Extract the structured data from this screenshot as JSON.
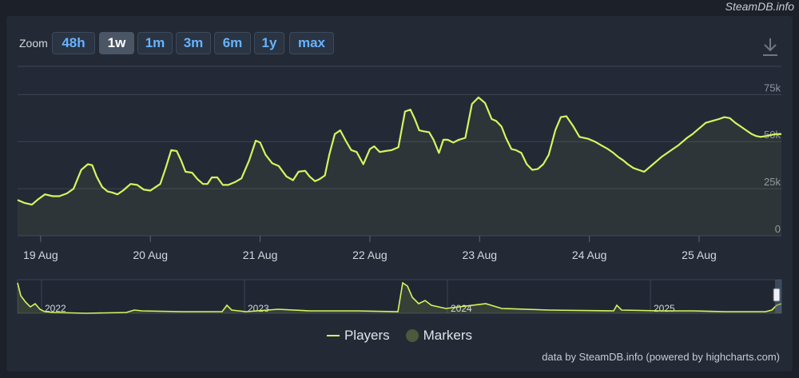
{
  "brand": "SteamDB.info",
  "zoom": {
    "label": "Zoom",
    "buttons": [
      "48h",
      "1w",
      "1m",
      "3m",
      "6m",
      "1y",
      "max"
    ],
    "active": "1w"
  },
  "download_icon": "download-icon",
  "legend": {
    "players": "Players",
    "markers": "Markers"
  },
  "credit": "data by SteamDB.info (powered by highcharts.com)",
  "colors": {
    "series": "#d8f35f",
    "background": "#232a36",
    "active_button": "#4a5566"
  },
  "chart_data": {
    "type": "line",
    "x_unit": "day (Aug)",
    "ylim": [
      0,
      90000
    ],
    "y_ticks": [
      0,
      25000,
      50000,
      75000
    ],
    "y_tick_labels": [
      "0",
      "25k",
      "50k",
      "75k"
    ],
    "x_ticks": [
      19,
      20,
      21,
      22,
      23,
      24,
      25
    ],
    "x_tick_labels": [
      "19 Aug",
      "20 Aug",
      "21 Aug",
      "22 Aug",
      "23 Aug",
      "24 Aug",
      "25 Aug"
    ],
    "xlim": [
      18.79,
      25.75
    ],
    "grid": true,
    "series": [
      {
        "name": "Players",
        "x": [
          18.79,
          18.85,
          18.92,
          18.98,
          19.04,
          19.11,
          19.17,
          19.24,
          19.3,
          19.37,
          19.43,
          19.47,
          19.51,
          19.56,
          19.61,
          19.65,
          19.7,
          19.75,
          19.82,
          19.88,
          19.94,
          20.0,
          20.05,
          20.09,
          20.14,
          20.19,
          20.24,
          20.28,
          20.32,
          20.38,
          20.43,
          20.48,
          20.52,
          20.56,
          20.61,
          20.66,
          20.71,
          20.77,
          20.83,
          20.9,
          20.96,
          21.0,
          21.05,
          21.11,
          21.17,
          21.24,
          21.3,
          21.35,
          21.41,
          21.45,
          21.5,
          21.54,
          21.59,
          21.63,
          21.68,
          21.73,
          21.78,
          21.83,
          21.88,
          21.94,
          22.0,
          22.04,
          22.09,
          22.14,
          22.2,
          22.26,
          22.32,
          22.37,
          22.41,
          22.45,
          22.49,
          22.54,
          22.58,
          22.63,
          22.67,
          22.71,
          22.76,
          22.81,
          22.87,
          22.93,
          22.99,
          23.05,
          23.11,
          23.15,
          23.2,
          23.24,
          23.29,
          23.33,
          23.38,
          23.43,
          23.48,
          23.53,
          23.58,
          23.63,
          23.69,
          23.74,
          23.79,
          23.85,
          23.91,
          23.99,
          24.05,
          24.11,
          24.17,
          24.22,
          24.26,
          24.31,
          24.35,
          24.4,
          24.45,
          24.5,
          24.54,
          24.58,
          24.62,
          24.66,
          24.71,
          24.76,
          24.81,
          24.85,
          24.89,
          24.94,
          24.98,
          25.02,
          25.06,
          25.12,
          25.18,
          25.23,
          25.28,
          25.33,
          25.38,
          25.43,
          25.48,
          25.52,
          25.56,
          25.61,
          25.65,
          25.7,
          25.75
        ],
        "y": [
          19000,
          17500,
          16500,
          19500,
          22000,
          21000,
          21000,
          22500,
          25000,
          35000,
          38000,
          37500,
          31500,
          26000,
          23500,
          23000,
          22000,
          24000,
          27500,
          27000,
          24500,
          24000,
          26000,
          27500,
          36000,
          45500,
          45000,
          40000,
          34000,
          33500,
          30000,
          27500,
          27500,
          31000,
          31000,
          27000,
          27000,
          28500,
          30500,
          40000,
          50500,
          49500,
          43000,
          38500,
          37000,
          31500,
          29500,
          34000,
          34500,
          31500,
          29000,
          30000,
          32000,
          43000,
          54000,
          56000,
          50500,
          45500,
          44500,
          38000,
          46000,
          47500,
          44500,
          45000,
          45500,
          47000,
          66000,
          67000,
          62000,
          56000,
          55500,
          55000,
          51000,
          44000,
          51000,
          51000,
          49500,
          51000,
          52000,
          70000,
          73500,
          70500,
          62000,
          61000,
          58000,
          52000,
          46000,
          45500,
          44000,
          38000,
          35000,
          35500,
          38000,
          43000,
          56000,
          63000,
          63500,
          58500,
          52500,
          51500,
          50000,
          48000,
          46000,
          44000,
          42000,
          40000,
          38000,
          36000,
          35000,
          34000,
          36000,
          38000,
          40000,
          42000,
          44000,
          46000,
          48000,
          50000,
          52000,
          54000,
          56000,
          58000,
          60000,
          61000,
          62000,
          63000,
          62500,
          60000,
          58000,
          56000,
          54000,
          53000,
          52500,
          53000,
          53500,
          54000,
          54000
        ]
      }
    ],
    "navigator": {
      "x_labels": [
        "2022",
        "2023",
        "2024",
        "2025"
      ]
    }
  }
}
